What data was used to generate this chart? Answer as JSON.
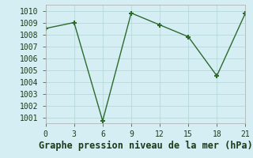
{
  "x": [
    0,
    3,
    6,
    9,
    12,
    15,
    18,
    21
  ],
  "y": [
    1008.5,
    1009.0,
    1000.7,
    1009.8,
    1008.8,
    1007.8,
    1004.5,
    1009.8
  ],
  "line_color": "#2d6a2d",
  "marker": "+",
  "marker_size": 5,
  "marker_linewidth": 1.5,
  "background_color": "#d4eef4",
  "grid_color": "#b8d8d8",
  "grid_color_minor": "#e0eeee",
  "xlabel": "Graphe pression niveau de la mer (hPa)",
  "xlabel_fontsize": 8.5,
  "xlim": [
    0,
    21
  ],
  "ylim": [
    1000.5,
    1010.5
  ],
  "xticks": [
    0,
    3,
    6,
    9,
    12,
    15,
    18,
    21
  ],
  "yticks": [
    1001,
    1002,
    1003,
    1004,
    1005,
    1006,
    1007,
    1008,
    1009,
    1010
  ],
  "tick_fontsize": 7,
  "line_width": 1.0,
  "spine_color": "#aaaaaa"
}
